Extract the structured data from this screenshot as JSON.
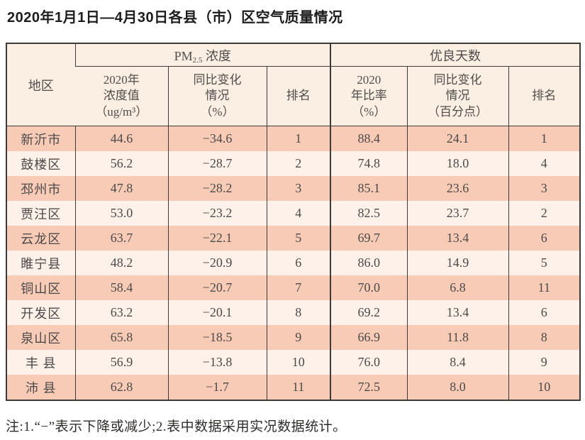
{
  "title": "2020年1月1日—4月30日各县（市）区空气质量情况",
  "note": "注:1.“−”表示下降或减少;2.表中数据采用实况数据统计。",
  "colors": {
    "row_salmon": "#f8cbb6",
    "row_light": "#fdf1e9",
    "header_bg": "#fbeee3",
    "border": "#3d3a38",
    "text": "#4c4948"
  },
  "table": {
    "corner": "地区",
    "pm25_group": {
      "prefix": "PM",
      "sub": "2.5",
      "suffix": " 浓度"
    },
    "good_group": "优良天数",
    "pm25_cols": {
      "value": "2020年\n浓度值\n（ug/m³）",
      "change": "同比变化\n情况\n（%）",
      "rank": "排名"
    },
    "good_cols": {
      "rate": "2020\n年比率\n（%）",
      "change": "同比变化\n情况\n（百分点）",
      "rank": "排名"
    },
    "rows": [
      {
        "region": "新沂市",
        "pm_value": "44.6",
        "pm_change": "−34.6",
        "pm_rank": "1",
        "good_rate": "88.4",
        "good_change": "24.1",
        "good_rank": "1"
      },
      {
        "region": "鼓楼区",
        "pm_value": "56.2",
        "pm_change": "−28.7",
        "pm_rank": "2",
        "good_rate": "74.8",
        "good_change": "18.0",
        "good_rank": "4"
      },
      {
        "region": "邳州市",
        "pm_value": "47.8",
        "pm_change": "−28.2",
        "pm_rank": "3",
        "good_rate": "85.1",
        "good_change": "23.6",
        "good_rank": "3"
      },
      {
        "region": "贾汪区",
        "pm_value": "53.0",
        "pm_change": "−23.2",
        "pm_rank": "4",
        "good_rate": "82.5",
        "good_change": "23.7",
        "good_rank": "2"
      },
      {
        "region": "云龙区",
        "pm_value": "63.7",
        "pm_change": "−22.1",
        "pm_rank": "5",
        "good_rate": "69.7",
        "good_change": "13.4",
        "good_rank": "6"
      },
      {
        "region": "睢宁县",
        "pm_value": "48.2",
        "pm_change": "−20.9",
        "pm_rank": "6",
        "good_rate": "86.0",
        "good_change": "14.9",
        "good_rank": "5"
      },
      {
        "region": "铜山区",
        "pm_value": "58.4",
        "pm_change": "−20.7",
        "pm_rank": "7",
        "good_rate": "70.0",
        "good_change": "6.8",
        "good_rank": "11"
      },
      {
        "region": "开发区",
        "pm_value": "63.2",
        "pm_change": "−20.1",
        "pm_rank": "8",
        "good_rate": "69.2",
        "good_change": "13.4",
        "good_rank": "6"
      },
      {
        "region": "泉山区",
        "pm_value": "65.8",
        "pm_change": "−18.5",
        "pm_rank": "9",
        "good_rate": "66.9",
        "good_change": "11.8",
        "good_rank": "8"
      },
      {
        "region": "丰 县",
        "pm_value": "56.9",
        "pm_change": "−13.8",
        "pm_rank": "10",
        "good_rate": "76.0",
        "good_change": "8.4",
        "good_rank": "9"
      },
      {
        "region": "沛 县",
        "pm_value": "62.8",
        "pm_change": "−1.7",
        "pm_rank": "11",
        "good_rate": "72.5",
        "good_change": "8.0",
        "good_rank": "10"
      }
    ]
  }
}
